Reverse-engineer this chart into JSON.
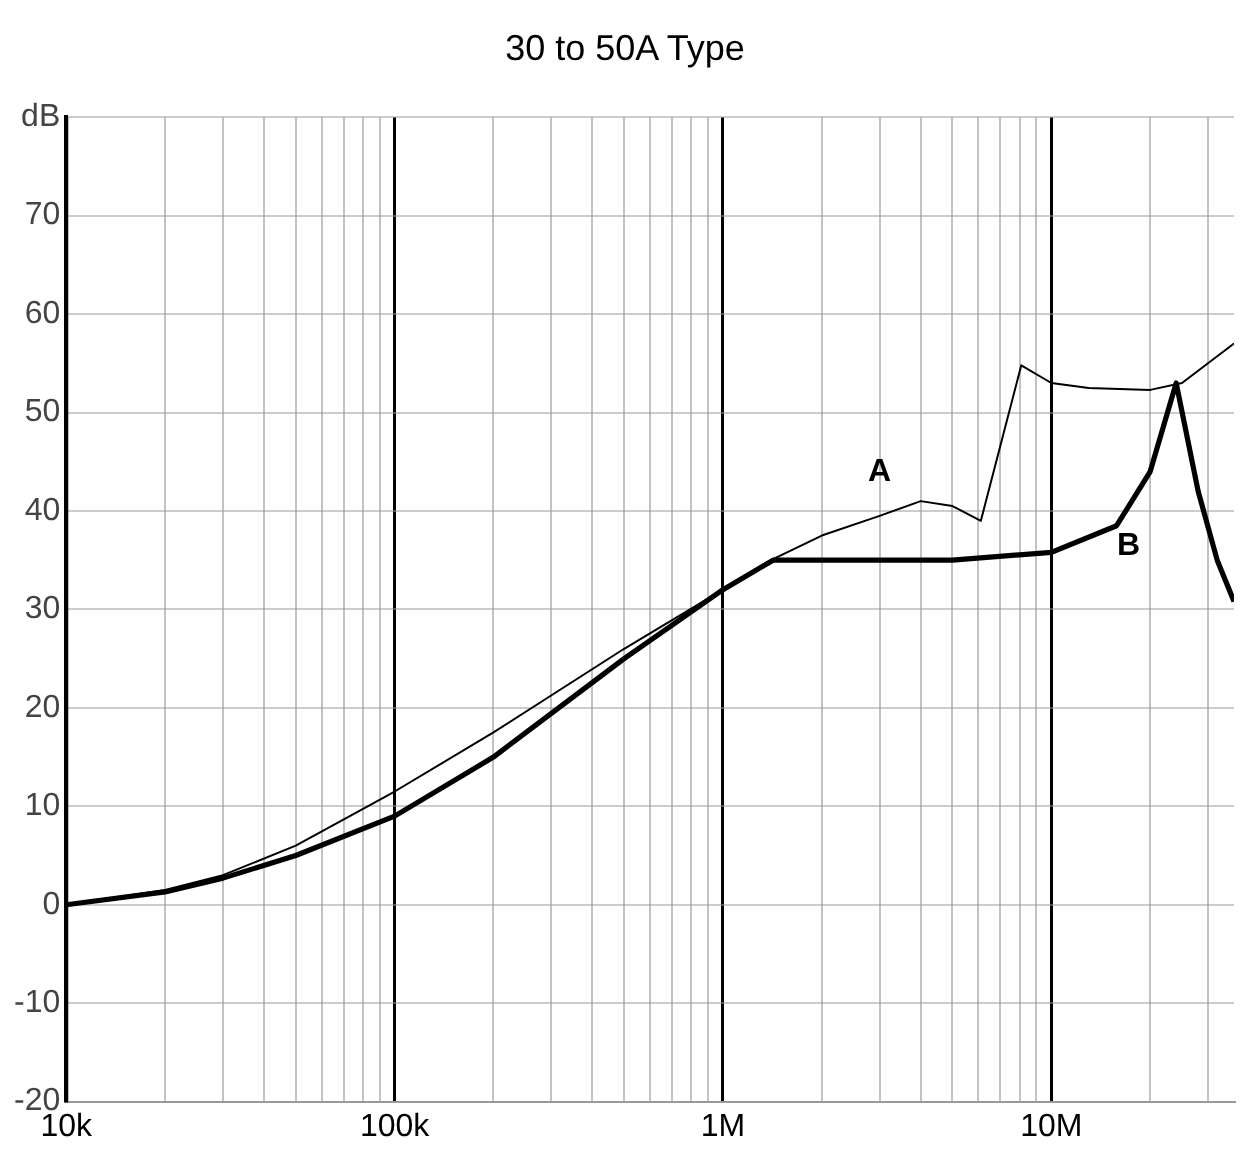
{
  "chart_data": {
    "type": "line",
    "title": "30 to 50A Type",
    "log": "x",
    "grid": true,
    "marker": "none",
    "line_style": "solid",
    "xlim": [
      10000,
      36000000
    ],
    "ylim": [
      -20,
      80
    ],
    "xticks": [
      {
        "value": 10000,
        "label": "10k"
      },
      {
        "value": 20000,
        "label": null
      },
      {
        "value": 30000,
        "label": null
      },
      {
        "value": 40000,
        "label": null
      },
      {
        "value": 50000,
        "label": null
      },
      {
        "value": 60000,
        "label": null
      },
      {
        "value": 70000,
        "label": null
      },
      {
        "value": 80000,
        "label": null
      },
      {
        "value": 90000,
        "label": null
      },
      {
        "value": 100000,
        "label": "100k"
      },
      {
        "value": 200000,
        "label": null
      },
      {
        "value": 300000,
        "label": null
      },
      {
        "value": 400000,
        "label": null
      },
      {
        "value": 500000,
        "label": null
      },
      {
        "value": 600000,
        "label": null
      },
      {
        "value": 700000,
        "label": null
      },
      {
        "value": 800000,
        "label": null
      },
      {
        "value": 900000,
        "label": null
      },
      {
        "value": 1000000,
        "label": "1M"
      },
      {
        "value": 2000000,
        "label": null
      },
      {
        "value": 3000000,
        "label": null
      },
      {
        "value": 4000000,
        "label": null
      },
      {
        "value": 5000000,
        "label": null
      },
      {
        "value": 6000000,
        "label": null
      },
      {
        "value": 7000000,
        "label": null
      },
      {
        "value": 8000000,
        "label": null
      },
      {
        "value": 9000000,
        "label": null
      },
      {
        "value": 10000000,
        "label": "10M"
      },
      {
        "value": 20000000,
        "label": null
      },
      {
        "value": 30000000,
        "label": null
      }
    ],
    "yticks": [
      -20,
      -10,
      0,
      10,
      20,
      30,
      40,
      50,
      60,
      70,
      {
        "value": 80,
        "label": "dB"
      }
    ],
    "series": [
      {
        "name": "A",
        "color": "#000000",
        "x": [
          10000,
          20000,
          30000,
          50000,
          100000,
          200000,
          500000,
          1000000,
          1400000,
          2000000,
          3000000,
          4000000,
          5000000,
          6100000,
          8100000,
          10000000,
          13000000,
          20000000,
          25000000,
          30000000,
          36000000
        ],
        "values": [
          0,
          1.5,
          3,
          6,
          11.5,
          17.5,
          26,
          32,
          35,
          37.5,
          39.5,
          41,
          40.5,
          39,
          54.8,
          53,
          52.5,
          52.3,
          53,
          55,
          57
        ]
      },
      {
        "name": "B",
        "color": "#000000",
        "x": [
          10000,
          20000,
          30000,
          50000,
          100000,
          200000,
          500000,
          1000000,
          1420000,
          5000000,
          10000000,
          15800000,
          20000000,
          24000000,
          28000000,
          32000000,
          36000000
        ],
        "values": [
          0,
          1.3,
          2.7,
          5,
          9,
          15,
          25,
          32,
          35,
          35,
          35.8,
          38.5,
          44,
          53,
          42,
          35,
          30.8
        ]
      }
    ]
  }
}
